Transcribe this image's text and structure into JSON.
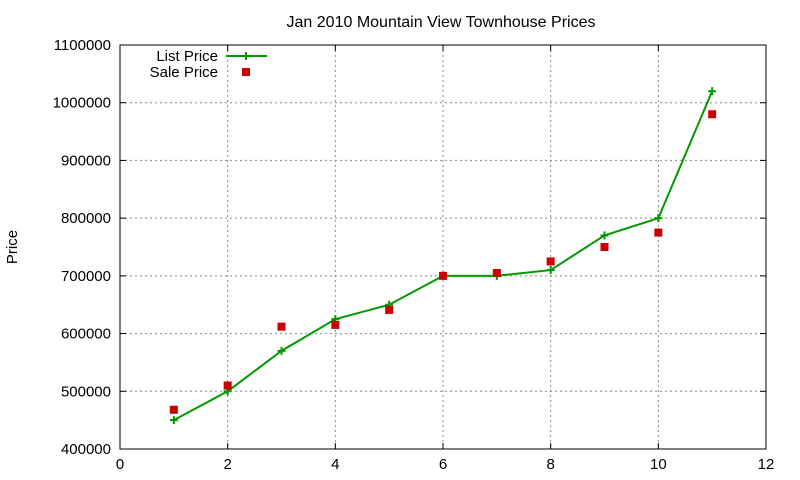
{
  "chart_data": {
    "type": "line",
    "title": "Jan 2010 Mountain View Townhouse Prices",
    "xlabel": "",
    "ylabel": "Price",
    "xlim": [
      0,
      12
    ],
    "ylim": [
      400000,
      1100000
    ],
    "x_ticks": [
      "0",
      "2",
      "4",
      "6",
      "8",
      "10",
      "12"
    ],
    "y_ticks": [
      "400000",
      "500000",
      "600000",
      "700000",
      "800000",
      "900000",
      "1000000",
      "1100000"
    ],
    "grid": true,
    "legend_position": "top-left",
    "series": [
      {
        "name": "List Price",
        "style": "line-plus-markers",
        "color": "#009900",
        "x": [
          1,
          2,
          3,
          4,
          5,
          6,
          7,
          8,
          9,
          10,
          11
        ],
        "y": [
          450000,
          500000,
          570000,
          625000,
          650000,
          700000,
          700000,
          710000,
          770000,
          800000,
          1020000
        ]
      },
      {
        "name": "Sale Price",
        "style": "square-markers",
        "color": "#cc0000",
        "x": [
          1,
          2,
          3,
          4,
          5,
          6,
          7,
          8,
          9,
          10,
          11
        ],
        "y": [
          468000,
          510000,
          612000,
          615000,
          641000,
          700000,
          705000,
          725000,
          750000,
          775000,
          980000
        ]
      }
    ]
  }
}
